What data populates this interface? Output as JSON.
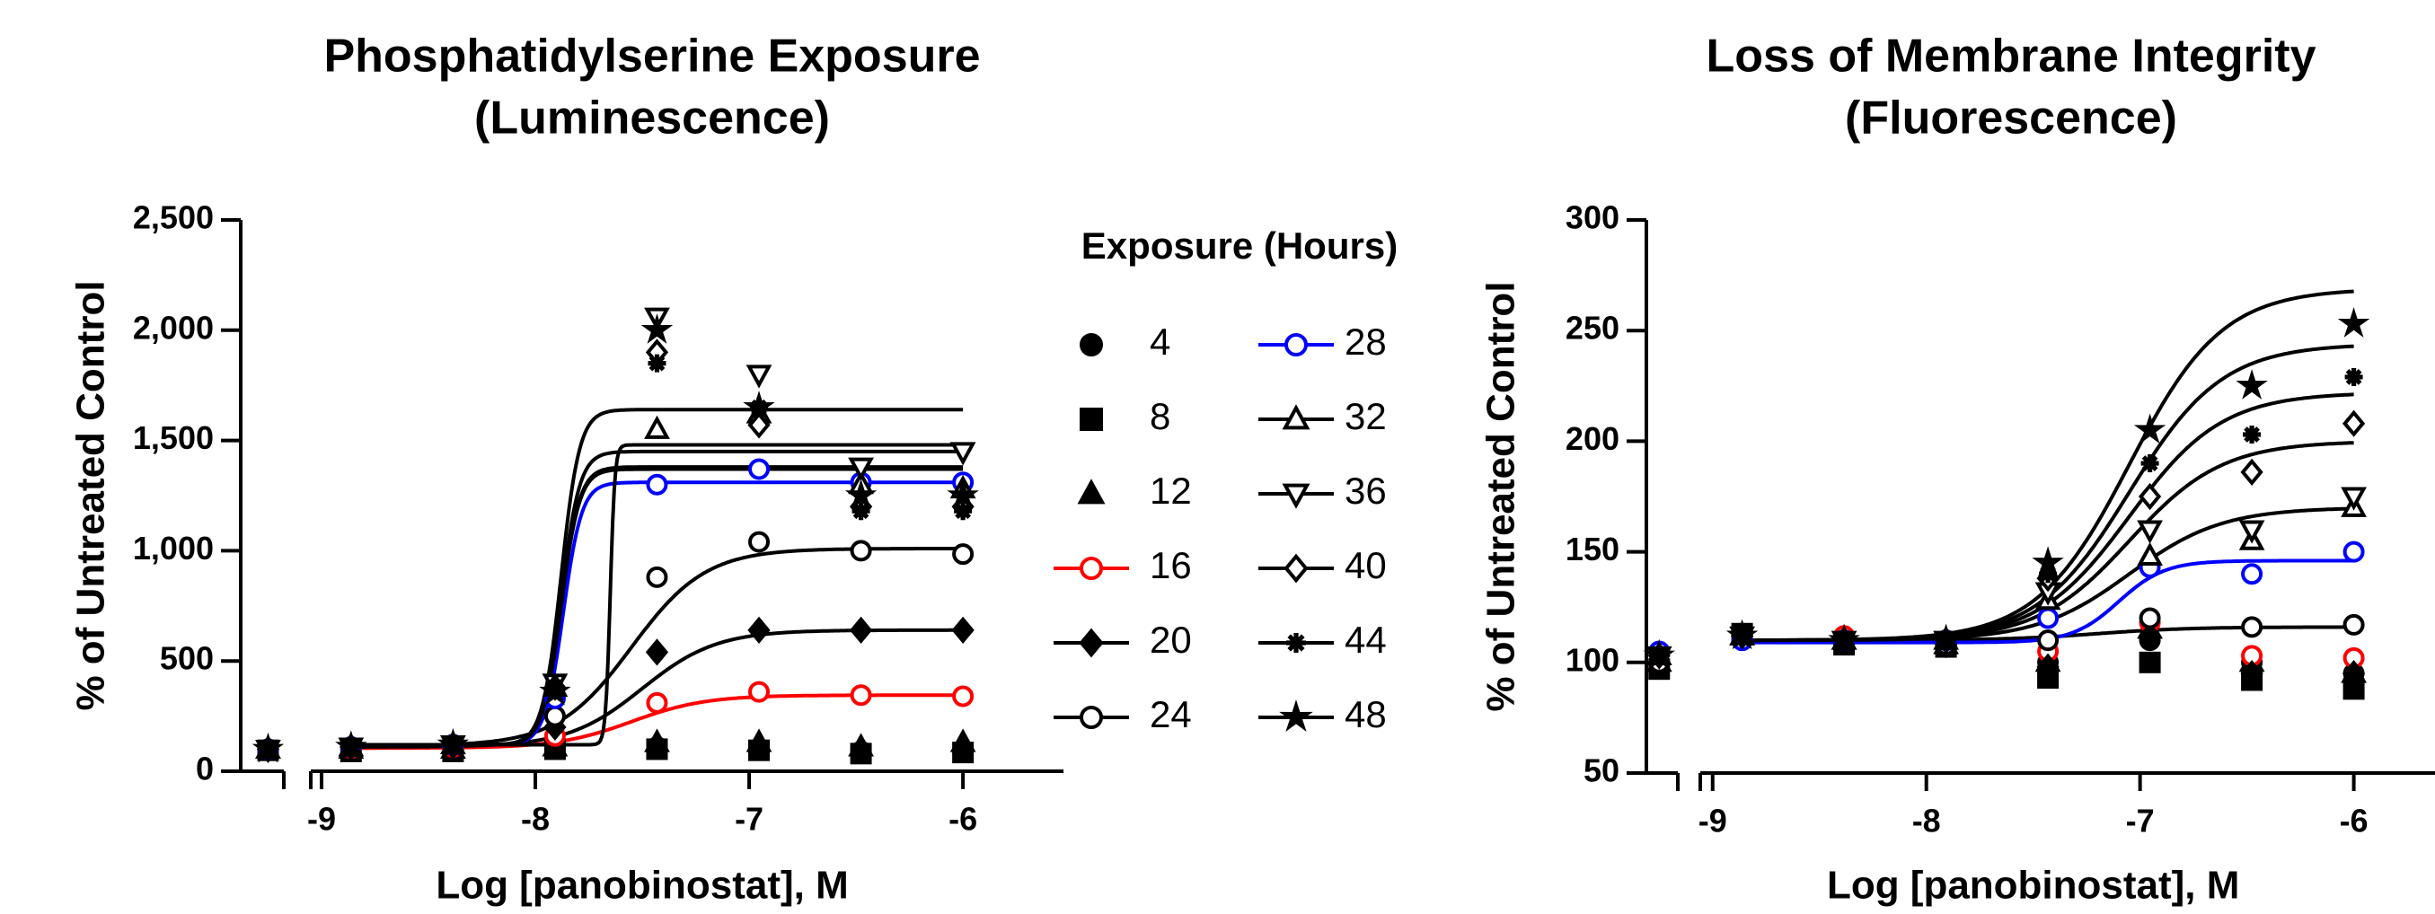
{
  "chart_data": [
    {
      "type": "scatter",
      "title": [
        "Phosphatidylserine Exposure",
        "(Luminescence)"
      ],
      "xlabel": "Log [panobinostat], M",
      "ylabel": "% of Untreated Control",
      "x": [
        -9.25,
        -8.862,
        -8.385,
        -7.908,
        -7.431,
        -6.954,
        -6.477,
        -6
      ],
      "xlim": [
        -9.378,
        -5.53
      ],
      "xticks": [
        -9,
        -8,
        -7,
        -6
      ],
      "ylim": [
        0,
        2500
      ],
      "yticks": [
        0,
        500,
        {
          "value": 1000,
          "label": "1,000"
        },
        {
          "value": 1500,
          "label": "1,500"
        },
        {
          "value": 2000,
          "label": "2,000"
        },
        {
          "value": 2500,
          "label": "2,500"
        }
      ],
      "legend_title": "Exposure (Hours)",
      "legend": "right",
      "series": [
        {
          "name": "4",
          "color": "#000000",
          "marker": "circle",
          "filled": true,
          "values": [
            100,
            100,
            95,
            110,
            110,
            100,
            90,
            90
          ]
        },
        {
          "name": "8",
          "color": "#000000",
          "marker": "square",
          "filled": true,
          "values": [
            95,
            90,
            90,
            100,
            100,
            95,
            80,
            85
          ]
        },
        {
          "name": "12",
          "color": "#000000",
          "marker": "triangle",
          "filled": true,
          "values": [
            100,
            100,
            100,
            110,
            130,
            130,
            110,
            130
          ]
        },
        {
          "name": "16",
          "color": "#ff0000",
          "marker": "circle",
          "filled": false,
          "values": [
            100,
            105,
            110,
            160,
            310,
            360,
            345,
            340
          ],
          "fit": {
            "bottom": 105,
            "top": 345,
            "logec50": -7.55,
            "hill": 2.5
          }
        },
        {
          "name": "20",
          "color": "#000000",
          "marker": "diamond",
          "filled": true,
          "values": [
            100,
            110,
            115,
            200,
            540,
            640,
            640,
            640
          ],
          "fit": {
            "bottom": 110,
            "top": 640,
            "logec50": -7.5,
            "hill": 2.5
          }
        },
        {
          "name": "24",
          "color": "#000000",
          "marker": "circle",
          "filled": false,
          "values": [
            100,
            110,
            120,
            250,
            880,
            1040,
            1000,
            985
          ],
          "fit": {
            "bottom": 115,
            "top": 1010,
            "logec50": -7.55,
            "hill": 2.5
          }
        },
        {
          "name": "28",
          "color": "#0000ff",
          "marker": "circle",
          "filled": false,
          "values": [
            100,
            110,
            120,
            330,
            1300,
            1370,
            1310,
            1310
          ],
          "fit": {
            "bottom": 120,
            "top": 1310,
            "logec50": -7.87,
            "hill": 10
          }
        },
        {
          "name": "32",
          "color": "#000000",
          "marker": "triangle",
          "filled": false,
          "values": [
            100,
            110,
            120,
            380,
            1550,
            1620,
            1300,
            1280
          ],
          "fit": {
            "bottom": 120,
            "top": 1380,
            "logec50": -7.88,
            "hill": 10
          }
        },
        {
          "name": "36",
          "color": "#000000",
          "marker": "down-triangle",
          "filled": false,
          "values": [
            100,
            110,
            120,
            400,
            2060,
            1800,
            1380,
            1450
          ],
          "fit": {
            "bottom": 120,
            "top": 1640,
            "logec50": -7.88,
            "hill": 10
          }
        },
        {
          "name": "40",
          "color": "#000000",
          "marker": "diamond",
          "filled": false,
          "values": [
            100,
            110,
            120,
            380,
            1900,
            1570,
            1200,
            1200
          ],
          "fit": {
            "bottom": 120,
            "top": 1450,
            "logec50": -7.88,
            "hill": 10
          }
        },
        {
          "name": "44",
          "color": "#000000",
          "marker": "asterisk",
          "filled": false,
          "values": [
            100,
            110,
            120,
            380,
            1850,
            1650,
            1180,
            1180
          ],
          "fit": {
            "bottom": 120,
            "top": 1480,
            "logec50": -7.65,
            "hill": 40
          }
        },
        {
          "name": "48",
          "color": "#000000",
          "marker": "star",
          "filled": true,
          "values": [
            100,
            110,
            120,
            360,
            2000,
            1650,
            1250,
            1250
          ],
          "fit": {
            "bottom": 120,
            "top": 1370,
            "logec50": -7.88,
            "hill": 10
          }
        }
      ]
    },
    {
      "type": "scatter",
      "title": [
        "Loss of Membrane Integrity",
        "(Fluorescence)"
      ],
      "xlabel": "Log [panobinostat], M",
      "ylabel": "% of Untreated Control",
      "x": [
        -9.25,
        -8.862,
        -8.385,
        -7.908,
        -7.431,
        -6.954,
        -6.477,
        -6
      ],
      "xlim": [
        -9.31,
        -5.62
      ],
      "xticks": [
        -9,
        -8,
        -7,
        -6
      ],
      "ylim": [
        50,
        300
      ],
      "yticks": [
        50,
        100,
        150,
        200,
        250,
        300
      ],
      "series": [
        {
          "name": "4",
          "color": "#000000",
          "marker": "circle",
          "filled": true,
          "values": [
            100,
            110,
            110,
            108,
            100,
            110,
            100,
            95
          ]
        },
        {
          "name": "8",
          "color": "#000000",
          "marker": "square",
          "filled": true,
          "values": [
            97,
            113,
            108,
            107,
            93,
            100,
            92,
            88
          ]
        },
        {
          "name": "12",
          "color": "#000000",
          "marker": "triangle",
          "filled": true,
          "values": [
            100,
            112,
            110,
            108,
            100,
            115,
            100,
            95
          ]
        },
        {
          "name": "16",
          "color": "#ff0000",
          "marker": "circle",
          "filled": false,
          "values": [
            100,
            112,
            112,
            108,
            105,
            118,
            103,
            102
          ]
        },
        {
          "name": "20",
          "color": "#000000",
          "marker": "diamond",
          "filled": true,
          "values": [
            100,
            112,
            110,
            108,
            98,
            112,
            95,
            95
          ]
        },
        {
          "name": "24",
          "color": "#000000",
          "marker": "circle",
          "filled": false,
          "values": [
            100,
            112,
            110,
            108,
            110,
            120,
            116,
            117
          ],
          "fit": {
            "bottom": 110,
            "top": 116,
            "logec50": -7.2,
            "hill": 2
          }
        },
        {
          "name": "28",
          "color": "#0000ff",
          "marker": "circle",
          "filled": false,
          "values": [
            105,
            110,
            110,
            110,
            120,
            143,
            140,
            150
          ],
          "fit": {
            "bottom": 109,
            "top": 146,
            "logec50": -7.1,
            "hill": 4
          }
        },
        {
          "name": "32",
          "color": "#000000",
          "marker": "triangle",
          "filled": false,
          "values": [
            103,
            112,
            110,
            110,
            128,
            148,
            155,
            170
          ],
          "fit": {
            "bottom": 110,
            "top": 170,
            "logec50": -7.05,
            "hill": 2
          }
        },
        {
          "name": "36",
          "color": "#000000",
          "marker": "down-triangle",
          "filled": false,
          "values": [
            103,
            112,
            110,
            110,
            132,
            160,
            160,
            175
          ],
          "fit": {
            "bottom": 110,
            "top": 200,
            "logec50": -7.05,
            "hill": 2
          }
        },
        {
          "name": "40",
          "color": "#000000",
          "marker": "diamond",
          "filled": false,
          "values": [
            103,
            112,
            110,
            110,
            138,
            175,
            186,
            208
          ],
          "fit": {
            "bottom": 110,
            "top": 222,
            "logec50": -7.05,
            "hill": 2
          }
        },
        {
          "name": "44",
          "color": "#000000",
          "marker": "asterisk",
          "filled": false,
          "values": [
            103,
            112,
            110,
            110,
            140,
            190,
            203,
            229
          ],
          "fit": {
            "bottom": 110,
            "top": 244,
            "logec50": -7.05,
            "hill": 2
          }
        },
        {
          "name": "48",
          "color": "#000000",
          "marker": "star",
          "filled": true,
          "values": [
            103,
            112,
            110,
            110,
            145,
            205,
            225,
            253
          ],
          "fit": {
            "bottom": 110,
            "top": 269,
            "logec50": -7.05,
            "hill": 2
          }
        }
      ]
    }
  ]
}
